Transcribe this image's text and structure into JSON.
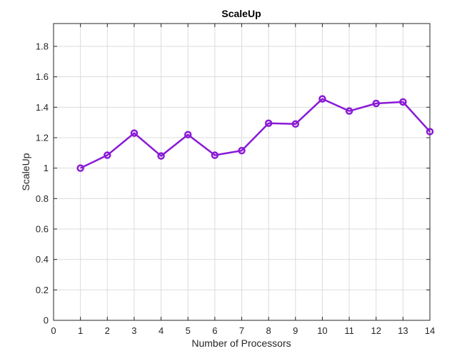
{
  "chart_data": {
    "type": "line",
    "title": "ScaleUp",
    "xlabel": "Number of Processors",
    "ylabel": "ScaleUp",
    "xlim": [
      0,
      14
    ],
    "ylim": [
      0,
      1.95
    ],
    "xticks": [
      0,
      1,
      2,
      3,
      4,
      5,
      6,
      7,
      8,
      9,
      10,
      11,
      12,
      13,
      14
    ],
    "yticks": [
      0,
      0.2,
      0.4,
      0.6,
      0.8,
      1,
      1.2,
      1.4,
      1.6,
      1.8
    ],
    "ytick_labels": [
      "0",
      "0.2",
      "0.4",
      "0.6",
      "0.8",
      "1",
      "1.2",
      "1.4",
      "1.6",
      "1.8"
    ],
    "grid": true,
    "series": [
      {
        "color": "#8a1ad6",
        "marker": "circle",
        "x": [
          1,
          2,
          3,
          4,
          5,
          6,
          7,
          8,
          9,
          10,
          11,
          12,
          13,
          14
        ],
        "values": [
          1.0,
          1.085,
          1.23,
          1.08,
          1.22,
          1.085,
          1.115,
          1.295,
          1.29,
          1.455,
          1.375,
          1.425,
          1.435,
          1.24
        ]
      }
    ]
  }
}
